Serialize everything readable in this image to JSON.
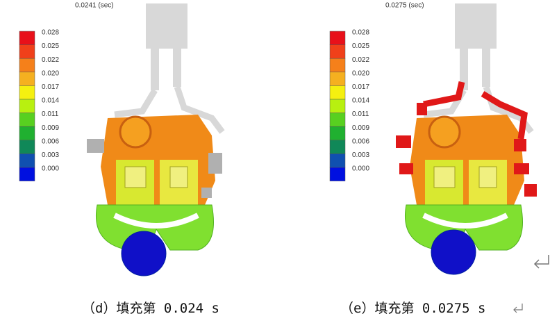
{
  "panels": [
    {
      "time_label": "0.0241 (sec)",
      "legend": [
        "0.028",
        "0.025",
        "0.022",
        "0.020",
        "0.017",
        "0.014",
        "0.011",
        "0.009",
        "0.006",
        "0.003",
        "0.000"
      ],
      "caption": "（d）填充第 0.024 s"
    },
    {
      "time_label": "0.0275 (sec)",
      "legend": [
        "0.028",
        "0.025",
        "0.022",
        "0.020",
        "0.017",
        "0.014",
        "0.011",
        "0.009",
        "0.006",
        "0.003",
        "0.000"
      ],
      "caption": "（e）填充第 0.0275 s"
    }
  ]
}
